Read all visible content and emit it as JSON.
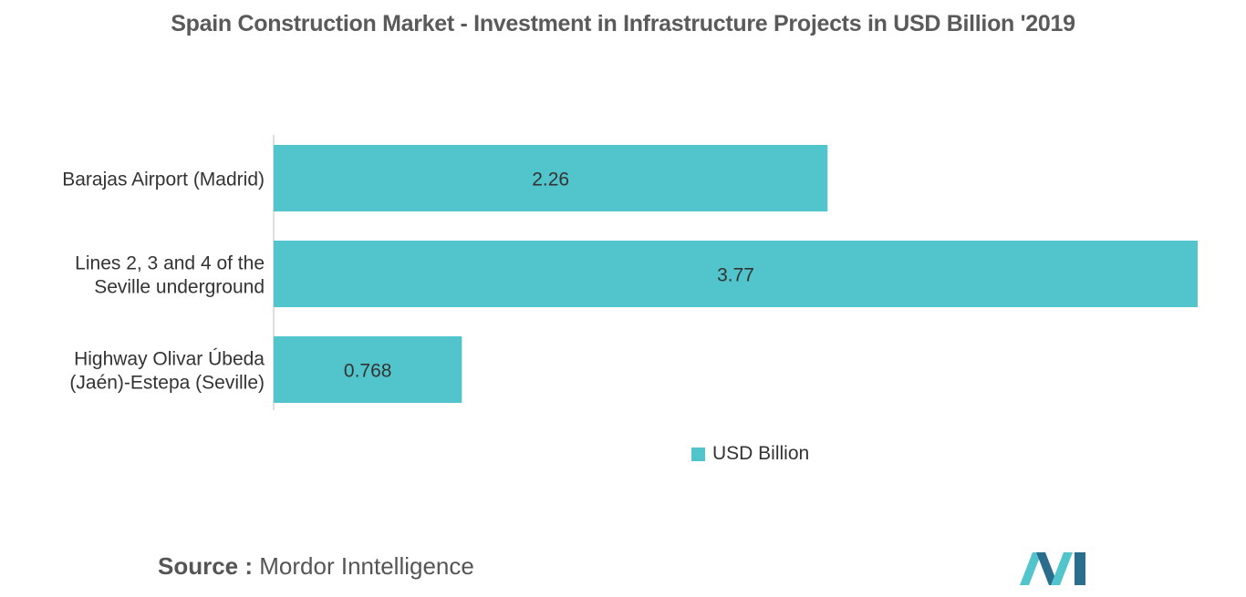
{
  "chart_data": {
    "type": "bar",
    "orientation": "horizontal",
    "title": "Spain Construction Market - Investment in Infrastructure Projects in USD Billion '2019",
    "categories": [
      [
        "Barajas Airport (Madrid)"
      ],
      [
        "Lines 2, 3 and 4 of the",
        "Seville underground"
      ],
      [
        "Highway Olivar Úbeda",
        "(Jaén)-Estepa (Seville)"
      ]
    ],
    "series": [
      {
        "name": "USD Billion",
        "values": [
          2.26,
          3.77,
          0.768
        ],
        "labels": [
          "2.26",
          "3.77",
          "0.768"
        ]
      }
    ],
    "xlim": [
      0,
      3.77
    ],
    "grid": false,
    "legend": "bottom-center",
    "color": "#52c5cc"
  },
  "source": {
    "label": "Source :",
    "value": "Mordor Inntelligence"
  },
  "logo": {
    "icon": "mordor-intelligence-logo-icon",
    "colors": [
      "#52c5cc",
      "#2b6d8c"
    ]
  }
}
